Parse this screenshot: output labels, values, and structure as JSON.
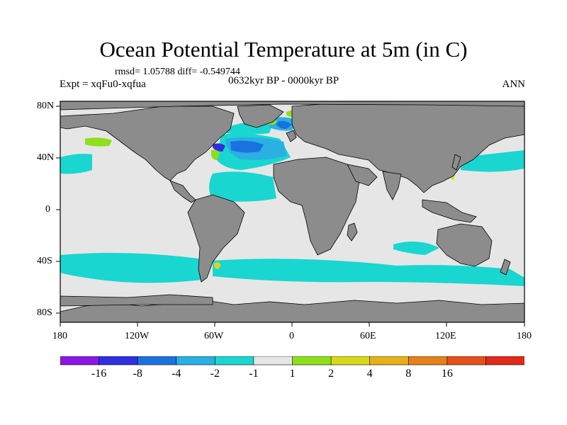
{
  "title": "Ocean Potential Temperature at 5m (in C)",
  "stats": "rmsd= 1.05788 diff= -0.549744",
  "experiment": "Expt = xqFu0-xqfua",
  "period": "0632kyr BP - 0000kyr BP",
  "season": "ANN",
  "axes": {
    "x_ticks": [
      "180",
      "120W",
      "60W",
      "0",
      "60E",
      "120E",
      "180"
    ],
    "y_ticks": [
      "80N",
      "40N",
      "0",
      "40S",
      "80S"
    ]
  },
  "colorbar": {
    "colors": [
      "#8c17e6",
      "#2f2fe0",
      "#1a72de",
      "#2ab0e2",
      "#1ad6d0",
      "#e6e6e6",
      "#8ce01a",
      "#d8d81a",
      "#e6b01a",
      "#e6801a",
      "#e6501a",
      "#e02a1a"
    ],
    "labels": [
      "-16",
      "-8",
      "-4",
      "-2",
      "-1",
      "1",
      "2",
      "4",
      "8",
      "16"
    ]
  },
  "colors": {
    "land": "#8c8c8c",
    "ocean_neutral": "#e6e6e6",
    "cool_light": "#1ad6d0",
    "cool_mid": "#2ab0e2",
    "cool_strong": "#1a72de",
    "cool_deep": "#2f2fe0",
    "warm_light": "#8ce01a",
    "warm_mid": "#d8d81a"
  }
}
